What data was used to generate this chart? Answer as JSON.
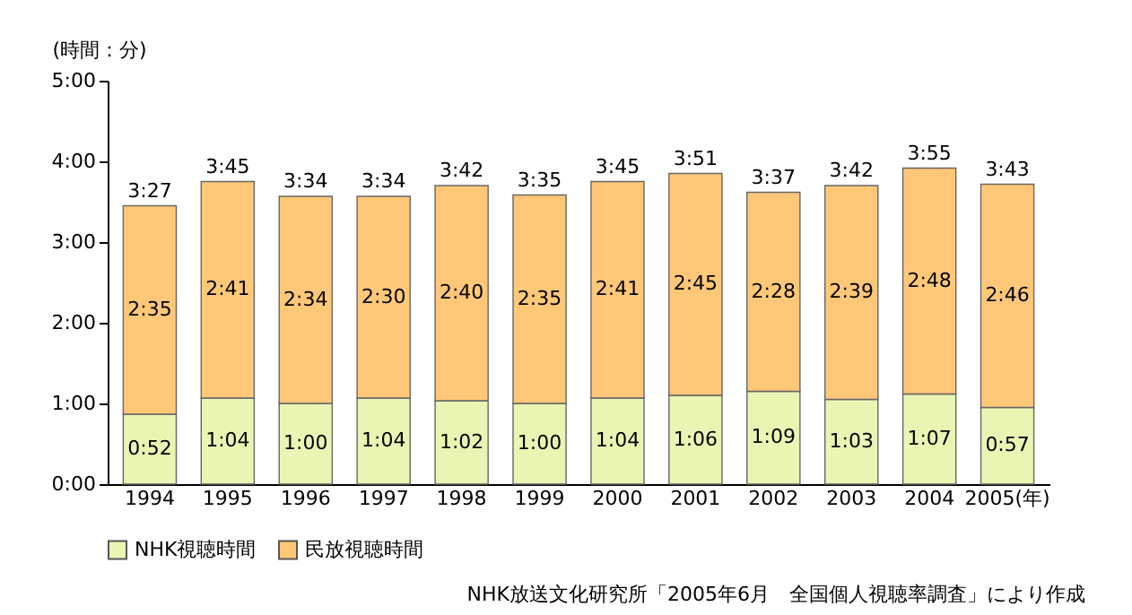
{
  "chart_data": {
    "type": "bar",
    "stacked": true,
    "ylabel": "(時間：分)",
    "categories": [
      "1994",
      "1995",
      "1996",
      "1997",
      "1998",
      "1999",
      "2000",
      "2001",
      "2002",
      "2003",
      "2004",
      "2005(年)"
    ],
    "series": [
      {
        "name": "NHK視聴時間",
        "color": "#eaf5b4",
        "values": [
          52,
          64,
          60,
          64,
          62,
          60,
          64,
          66,
          69,
          63,
          67,
          57
        ],
        "value_labels": [
          "0:52",
          "1:04",
          "1:00",
          "1:04",
          "1:02",
          "1:00",
          "1:04",
          "1:06",
          "1:09",
          "1:03",
          "1:07",
          "0:57"
        ]
      },
      {
        "name": "民放視聴時間",
        "color": "#ffc878",
        "values": [
          155,
          161,
          154,
          150,
          160,
          155,
          161,
          165,
          148,
          159,
          168,
          166
        ],
        "value_labels": [
          "2:35",
          "2:41",
          "2:34",
          "2:30",
          "2:40",
          "2:35",
          "2:41",
          "2:45",
          "2:28",
          "2:39",
          "2:48",
          "2:46"
        ]
      }
    ],
    "totals": [
      "3:27",
      "3:45",
      "3:34",
      "3:34",
      "3:42",
      "3:35",
      "3:45",
      "3:51",
      "3:37",
      "3:42",
      "3:55",
      "3:43"
    ],
    "ylim": [
      0,
      300
    ],
    "yticks": [
      {
        "value": 0,
        "label": "0:00"
      },
      {
        "value": 60,
        "label": "1:00"
      },
      {
        "value": 120,
        "label": "2:00"
      },
      {
        "value": 180,
        "label": "3:00"
      },
      {
        "value": 240,
        "label": "4:00"
      },
      {
        "value": 300,
        "label": "5:00"
      }
    ],
    "grid": false,
    "legend": "bottom",
    "annotations": [
      "NHK放送文化研究所「2005年6月　全国個人視聴率調査」により作成"
    ]
  }
}
